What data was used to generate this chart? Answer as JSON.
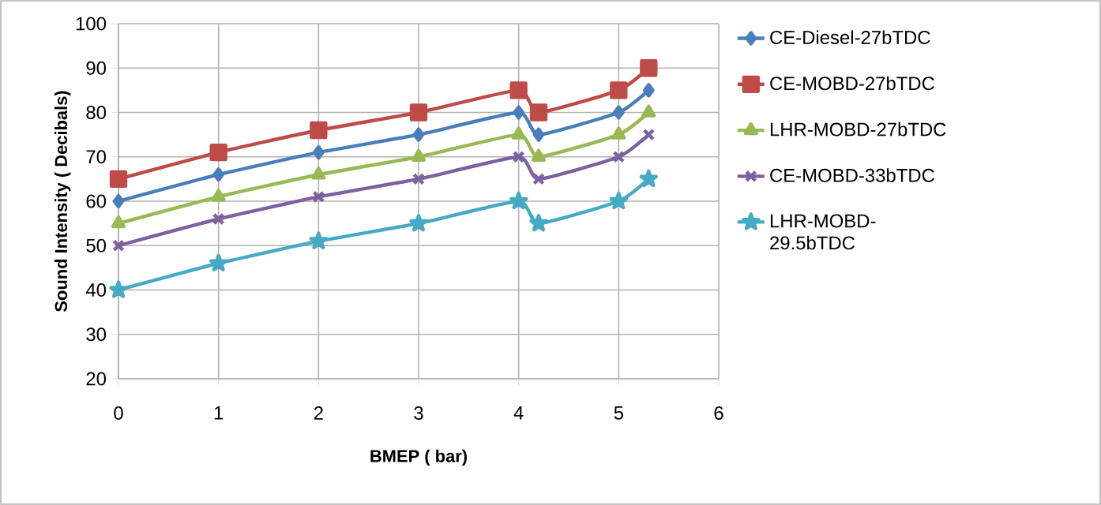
{
  "chart_data": {
    "type": "line",
    "xlabel": "BMEP ( bar)",
    "ylabel": "Sound Intensity ( Decibals)",
    "x": [
      0,
      1,
      2,
      3,
      4,
      4.2,
      5,
      5.3
    ],
    "series": [
      {
        "name": "CE-Diesel-27bTDC",
        "color": "#4a7ebb",
        "marker": "diamond",
        "values": [
          60,
          66,
          71,
          75,
          80,
          75,
          80,
          85
        ]
      },
      {
        "name": "CE-MOBD-27bTDC",
        "color": "#be4b48",
        "marker": "square",
        "values": [
          65,
          71,
          76,
          80,
          85,
          80,
          85,
          90
        ]
      },
      {
        "name": "LHR-MOBD-27bTDC",
        "color": "#98b954",
        "marker": "triangle",
        "values": [
          55,
          61,
          66,
          70,
          75,
          70,
          75,
          80
        ]
      },
      {
        "name": "CE-MOBD-33bTDC",
        "color": "#7d60a0",
        "marker": "cross",
        "values": [
          50,
          56,
          61,
          65,
          70,
          65,
          70,
          75
        ]
      },
      {
        "name": "LHR-MOBD-29.5bTDC",
        "color": "#46aac5",
        "marker": "star",
        "values": [
          40,
          46,
          51,
          55,
          60,
          55,
          60,
          65
        ]
      }
    ],
    "xlim": [
      0,
      6
    ],
    "xticks": [
      0,
      1,
      2,
      3,
      4,
      5,
      6
    ],
    "ylim": [
      20,
      100
    ],
    "yticks": [
      20,
      30,
      40,
      50,
      60,
      70,
      80,
      90,
      100
    ],
    "grid": true,
    "legend": "right",
    "line_style": "solid"
  }
}
